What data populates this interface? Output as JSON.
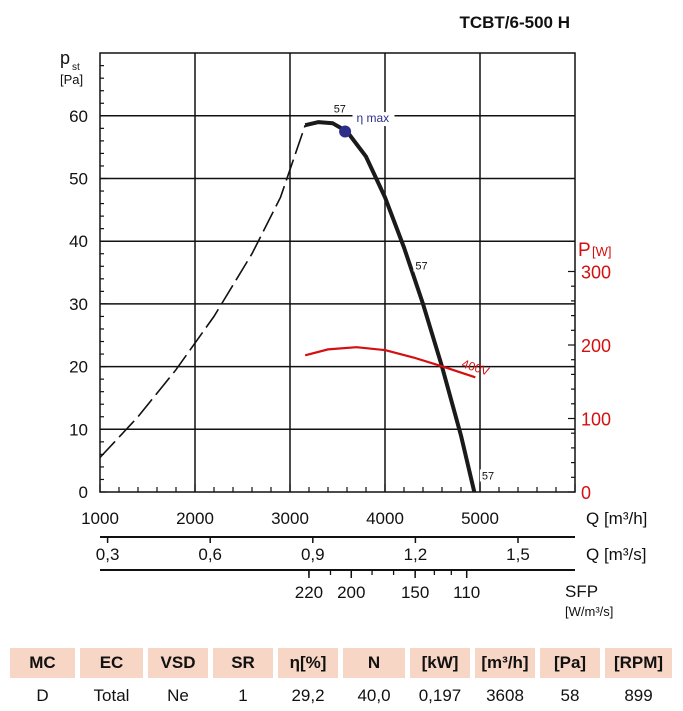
{
  "title": "TCBT/6-500 H",
  "chart_data": {
    "type": "line",
    "title": "TCBT/6-500 H",
    "ylabel": "p",
    "ylabel_sub": "st",
    "yunit": "[Pa]",
    "y2label": "P",
    "y2unit": "[W]",
    "xlabel": "Q [m³/h]",
    "xlabel2": "Q [m³/s]",
    "xlabel3": "SFP",
    "xlabel3_unit": "[W/m³/s]",
    "xlim": [
      1000,
      6000
    ],
    "ylim": [
      0,
      70
    ],
    "y2lim": [
      0,
      300
    ],
    "grid": true,
    "x_ticks": [
      1000,
      2000,
      3000,
      4000,
      5000
    ],
    "y_ticks": [
      0,
      10,
      20,
      30,
      40,
      50,
      60
    ],
    "y2_ticks": [
      0,
      100,
      200,
      300
    ],
    "x2_ticks": [
      {
        "label": "0,3",
        "value": 0.3
      },
      {
        "label": "0,6",
        "value": 0.6
      },
      {
        "label": "0,9",
        "value": 0.9
      },
      {
        "label": "1,2",
        "value": 1.2
      },
      {
        "label": "1,5",
        "value": 1.5
      }
    ],
    "sfp_ticks": [
      {
        "label": "220",
        "q": 3950
      },
      {
        "label": "200",
        "q": 4500
      },
      {
        "label": "150",
        "q": 5330
      },
      {
        "label": "110",
        "q": 6000
      }
    ],
    "sfp_tick_q": [
      3950,
      4230,
      4500,
      4770,
      5050,
      5330,
      5580,
      5800,
      6000
    ],
    "series": [
      {
        "name": "pressure-unstable",
        "style": "dashed",
        "x": [
          1000,
          1400,
          1800,
          2200,
          2600,
          2900,
          3160
        ],
        "y": [
          5.5,
          12,
          19.5,
          28,
          38,
          47,
          58.5
        ]
      },
      {
        "name": "pressure-57",
        "style": "solid",
        "x": [
          3160,
          3300,
          3450,
          3600,
          3800,
          4000,
          4200,
          4400,
          4600,
          4800,
          4940
        ],
        "y": [
          58.5,
          59,
          58.8,
          57.5,
          53.5,
          47,
          39,
          30,
          20,
          9,
          0
        ]
      },
      {
        "name": "power-400V",
        "axis": "y2",
        "x": [
          3160,
          3400,
          3700,
          4000,
          4300,
          4600,
          4950
        ],
        "y": [
          186,
          194,
          197,
          193,
          183,
          171,
          156
        ]
      }
    ],
    "annotations": [
      {
        "text": "57",
        "x": 3460,
        "y": 60.5
      },
      {
        "text": "η max",
        "x": 3700,
        "y": 59
      },
      {
        "text": "57",
        "x": 4320,
        "y": 35.5
      },
      {
        "text": "57",
        "x": 5020,
        "y": 2
      },
      {
        "text": "400V",
        "x": 4800,
        "y2": 170
      }
    ],
    "eta_max_point": {
      "x": 3580,
      "y": 57.5
    }
  },
  "colors": {
    "curve": "#1a1a1a",
    "power": "#d40f0f",
    "eta": "#2b2f8a",
    "header_bg": "#f8d6c5"
  },
  "table": {
    "headers": [
      "MC",
      "EC",
      "VSD",
      "SR",
      "η[%]",
      "N",
      "[kW]",
      "[m³/h]",
      "[Pa]",
      "[RPM]"
    ],
    "values": [
      "D",
      "Total",
      "Ne",
      "1",
      "29,2",
      "40,0",
      "0,197",
      "3608",
      "58",
      "899"
    ]
  }
}
